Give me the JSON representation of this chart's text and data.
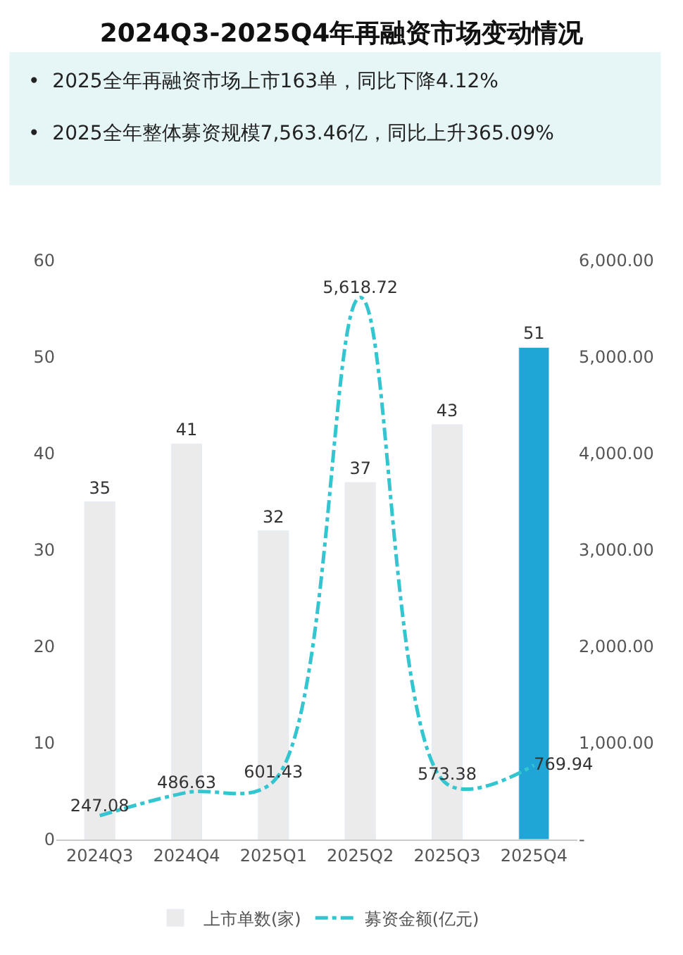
{
  "chart_data": {
    "type": "bar",
    "title": "2024Q3-2025Q4年再融资市场变动情况",
    "annotations": [
      "•  2025全年再融资市场上市163单，同比下降4.12%",
      "•  2025全年整体募资规模7,563.46亿，同比上升365.09%"
    ],
    "categories": [
      "2024Q3",
      "2024Q4",
      "2025Q1",
      "2025Q2",
      "2025Q3",
      "2025Q4"
    ],
    "series": [
      {
        "name": "上市单数(家)",
        "colors": [
          "#ebebeb",
          "#ebebeb",
          "#ebebeb",
          "#ebebeb",
          "#ebebeb",
          "#1fa6d6"
        ],
        "values": [
          35,
          41,
          32,
          37,
          43,
          51
        ]
      },
      {
        "name": "募资金额(亿元)",
        "type": "line",
        "axis": "y2",
        "color": "#33c5d0",
        "line_style": "dashed",
        "values": [
          247.08,
          486.63,
          601.43,
          5618.72,
          573.38,
          769.94
        ],
        "value_labels": [
          "247.08",
          "486.63",
          "601.43",
          "5,618.72",
          "573.38",
          "769.94"
        ]
      }
    ],
    "ylim": [
      0,
      60
    ],
    "yticks": [
      0,
      10,
      20,
      30,
      40,
      50,
      60
    ],
    "y2lim": [
      0,
      6000
    ],
    "y2ticks": [
      {
        "value": 0,
        "label": "-"
      },
      {
        "value": 1000,
        "label": "1,000.00"
      },
      {
        "value": 2000,
        "label": "2,000.00"
      },
      {
        "value": 3000,
        "label": "3,000.00"
      },
      {
        "value": 4000,
        "label": "4,000.00"
      },
      {
        "value": 5000,
        "label": "5,000.00"
      },
      {
        "value": 6000,
        "label": "6,000.00"
      }
    ],
    "data_labels": true,
    "legend": "bottom",
    "marker": "none"
  }
}
